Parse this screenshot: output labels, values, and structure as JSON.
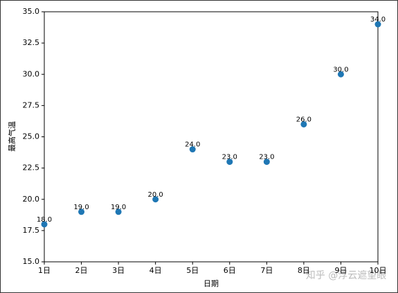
{
  "chart_data": {
    "type": "scatter",
    "xlabel": "日期",
    "ylabel": "最高气温",
    "categories": [
      "1日",
      "2日",
      "3日",
      "4日",
      "5日",
      "6日",
      "7日",
      "8日",
      "9日",
      "10日"
    ],
    "values": [
      18,
      19,
      19,
      20,
      24,
      23,
      23,
      26,
      30,
      34
    ],
    "value_labels": [
      "18.0",
      "19.0",
      "19.0",
      "20.0",
      "24.0",
      "23.0",
      "23.0",
      "26.0",
      "30.0",
      "34.0"
    ],
    "color": "#1f77b4",
    "ylim": [
      15,
      35
    ],
    "yticks": [
      {
        "value": 15,
        "label": "15.0"
      },
      {
        "value": 17.5,
        "label": "17.5"
      },
      {
        "value": 20,
        "label": "20.0"
      },
      {
        "value": 22.5,
        "label": "22.5"
      },
      {
        "value": 25,
        "label": "25.0"
      },
      {
        "value": 27.5,
        "label": "27.5"
      },
      {
        "value": 30,
        "label": "30.0"
      },
      {
        "value": 32.5,
        "label": "32.5"
      },
      {
        "value": 35,
        "label": "35.0"
      }
    ],
    "watermark": "知乎 @浮云遮望眼"
  }
}
